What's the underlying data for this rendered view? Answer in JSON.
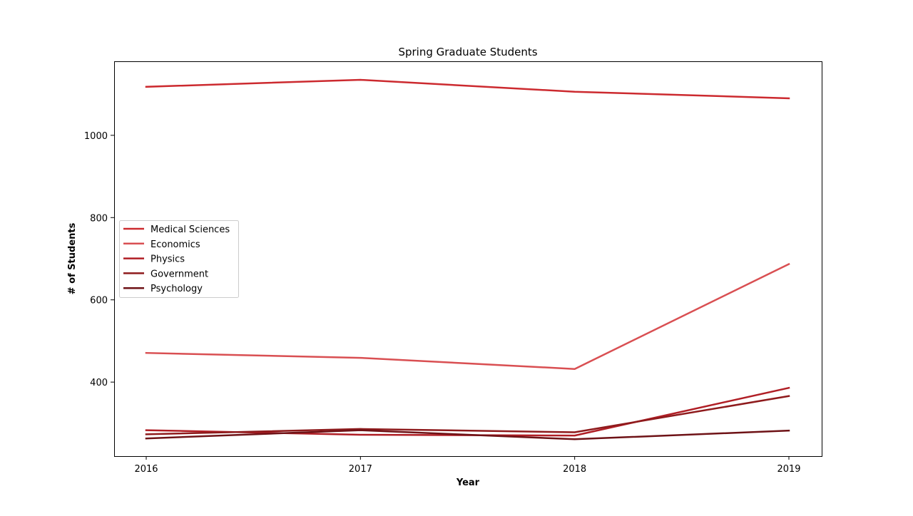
{
  "chart_data": {
    "type": "line",
    "title": "Spring Graduate Students",
    "xlabel": "Year",
    "ylabel": "# of Students",
    "x": [
      2016,
      2017,
      2018,
      2019
    ],
    "xticks": [
      "2016",
      "2017",
      "2018",
      "2019"
    ],
    "yticks": [
      400,
      600,
      800,
      1000
    ],
    "ylim": [
      220,
      1180
    ],
    "grid": false,
    "legend_position": "center-left",
    "series": [
      {
        "name": "Medical Sciences",
        "color": "#cc2a2f",
        "values": [
          1118,
          1135,
          1106,
          1090
        ]
      },
      {
        "name": "Economics",
        "color": "#d94f52",
        "values": [
          471,
          459,
          432,
          687
        ]
      },
      {
        "name": "Physics",
        "color": "#b01e25",
        "values": [
          283,
          272,
          270,
          386
        ]
      },
      {
        "name": "Government",
        "color": "#8e1a1c",
        "values": [
          273,
          286,
          278,
          366
        ]
      },
      {
        "name": "Psychology",
        "color": "#6e1216",
        "values": [
          263,
          283,
          261,
          282
        ]
      }
    ]
  }
}
